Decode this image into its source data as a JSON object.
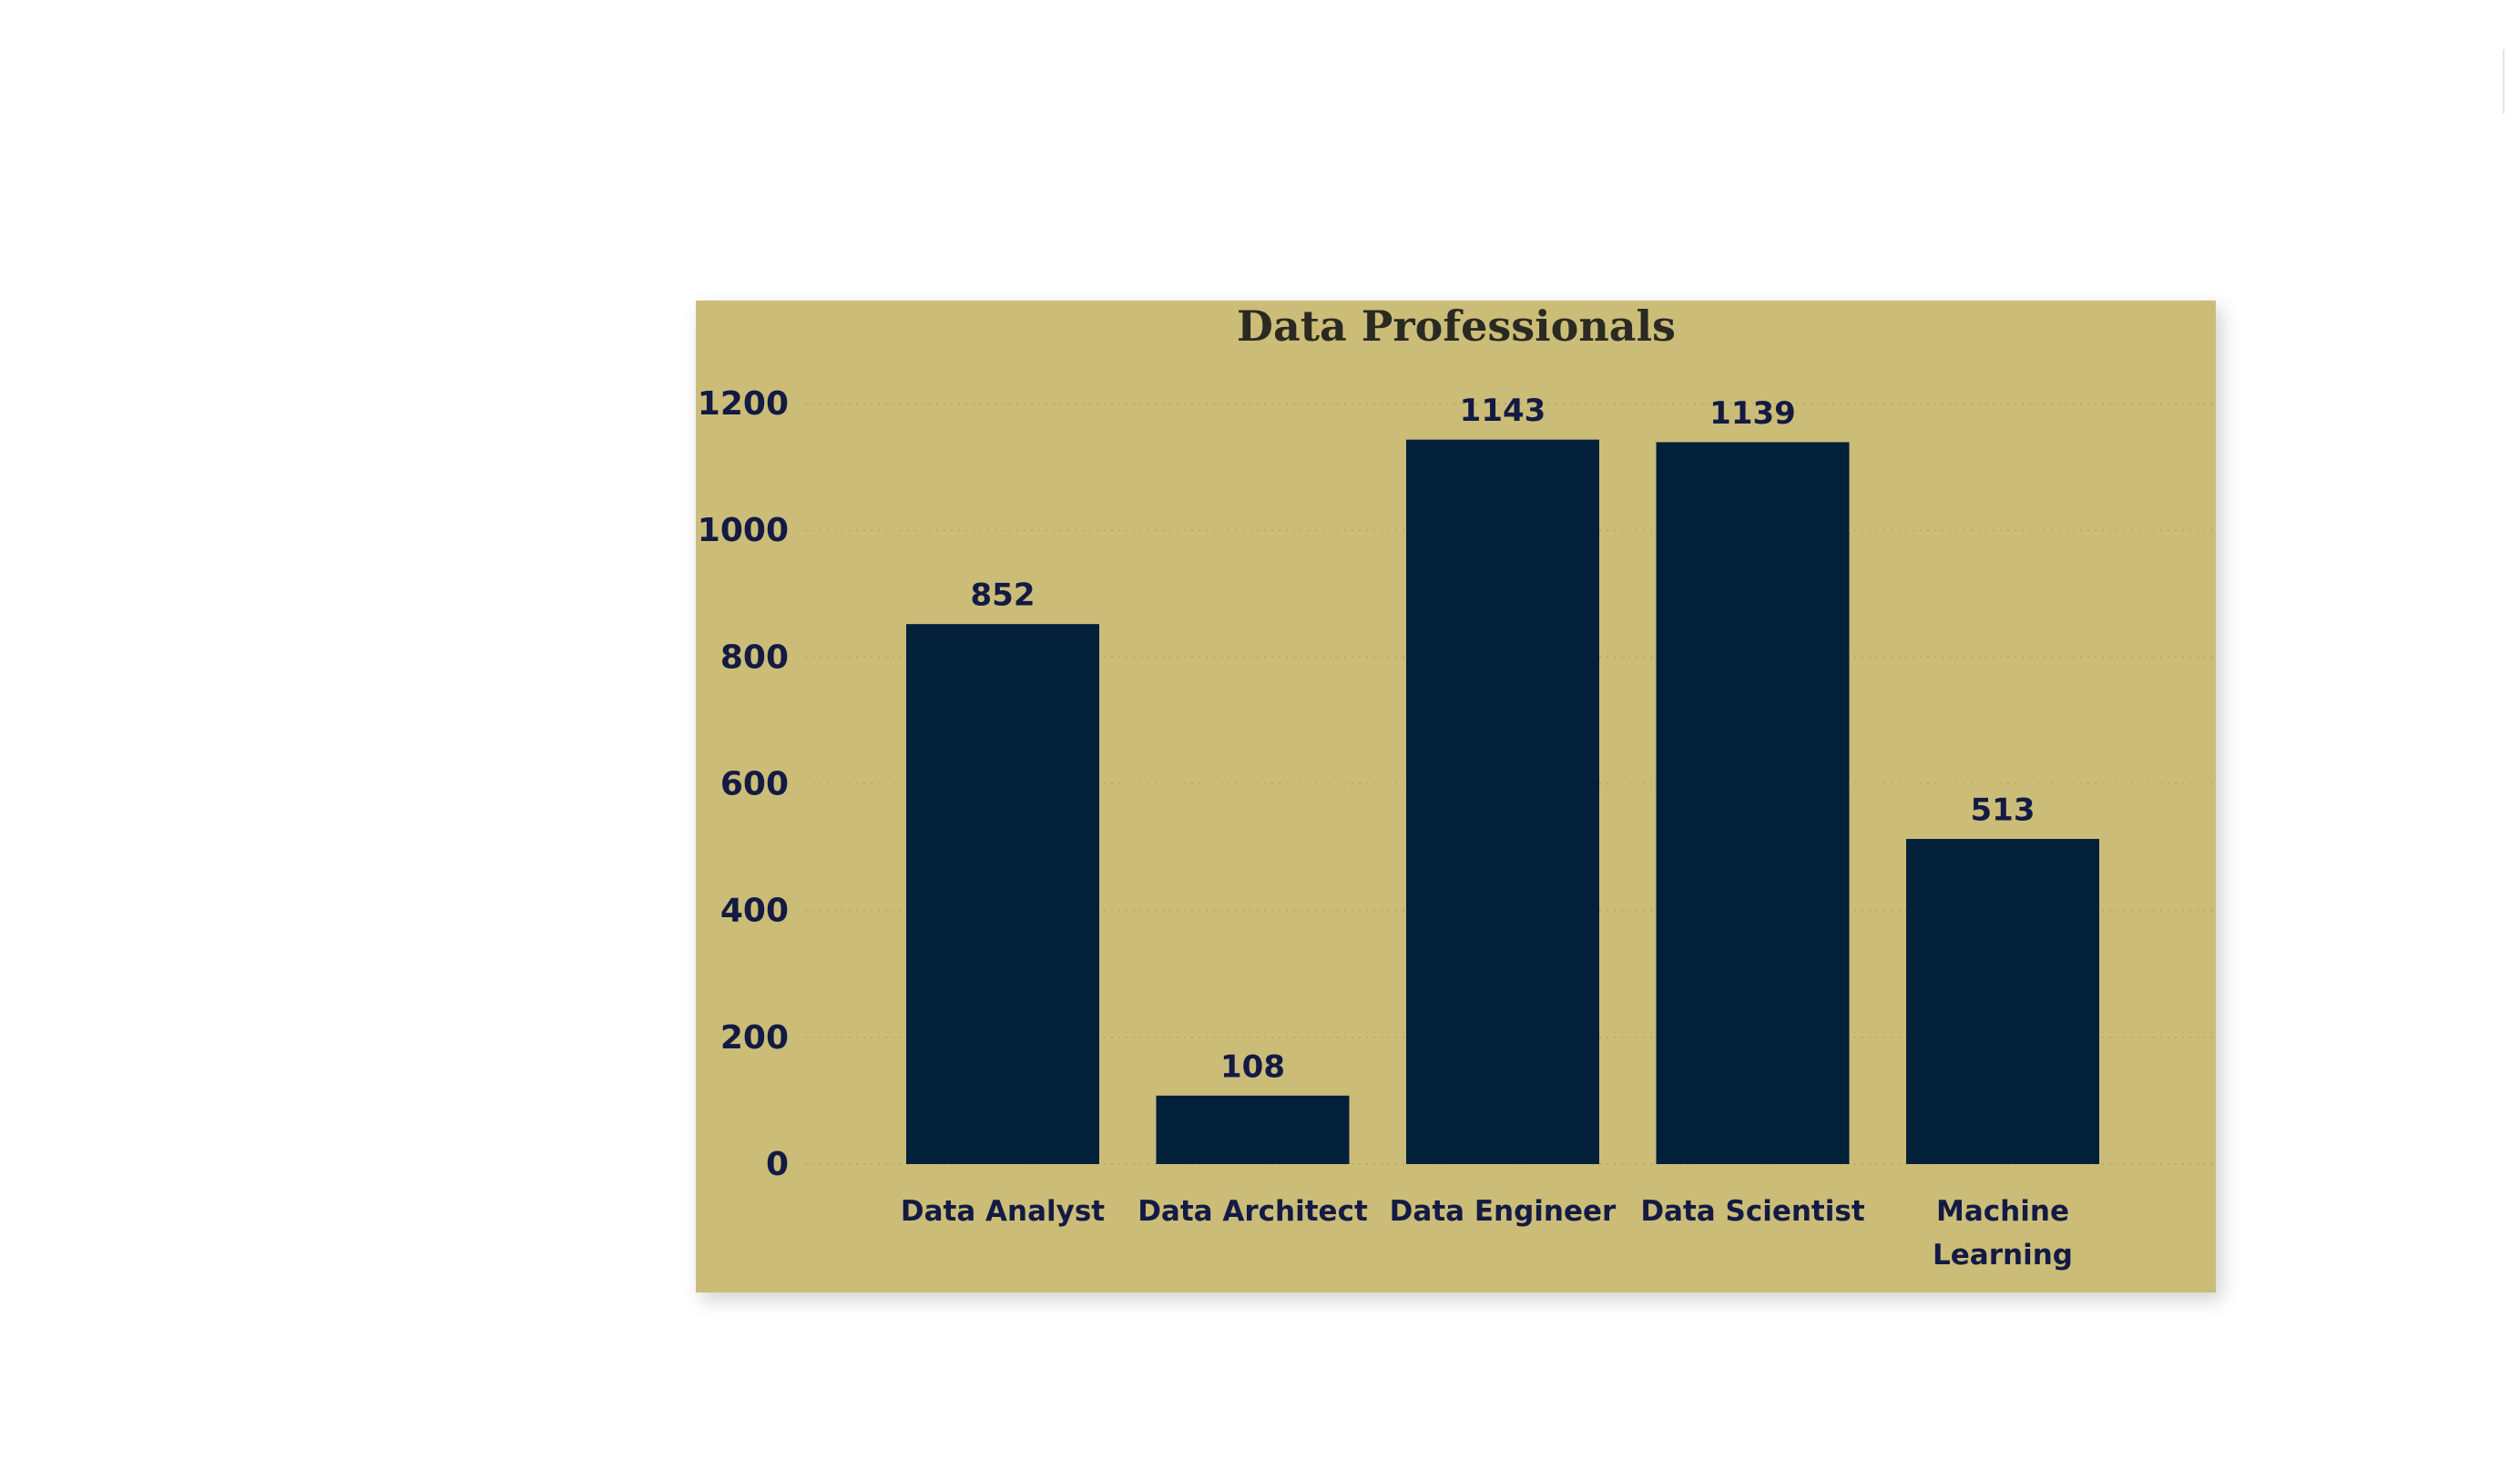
{
  "chart_data": {
    "type": "bar",
    "title": "Data Professionals",
    "categories": [
      "Data Analyst",
      "Data Architect",
      "Data Engineer",
      "Data Scientist",
      "Machine Learning"
    ],
    "values": [
      852,
      108,
      1143,
      1139,
      513
    ],
    "color": "#02203a",
    "ylim": [
      0,
      1200
    ],
    "yticks": [
      0,
      200,
      400,
      600,
      800,
      1000,
      1200
    ],
    "grid": true
  }
}
